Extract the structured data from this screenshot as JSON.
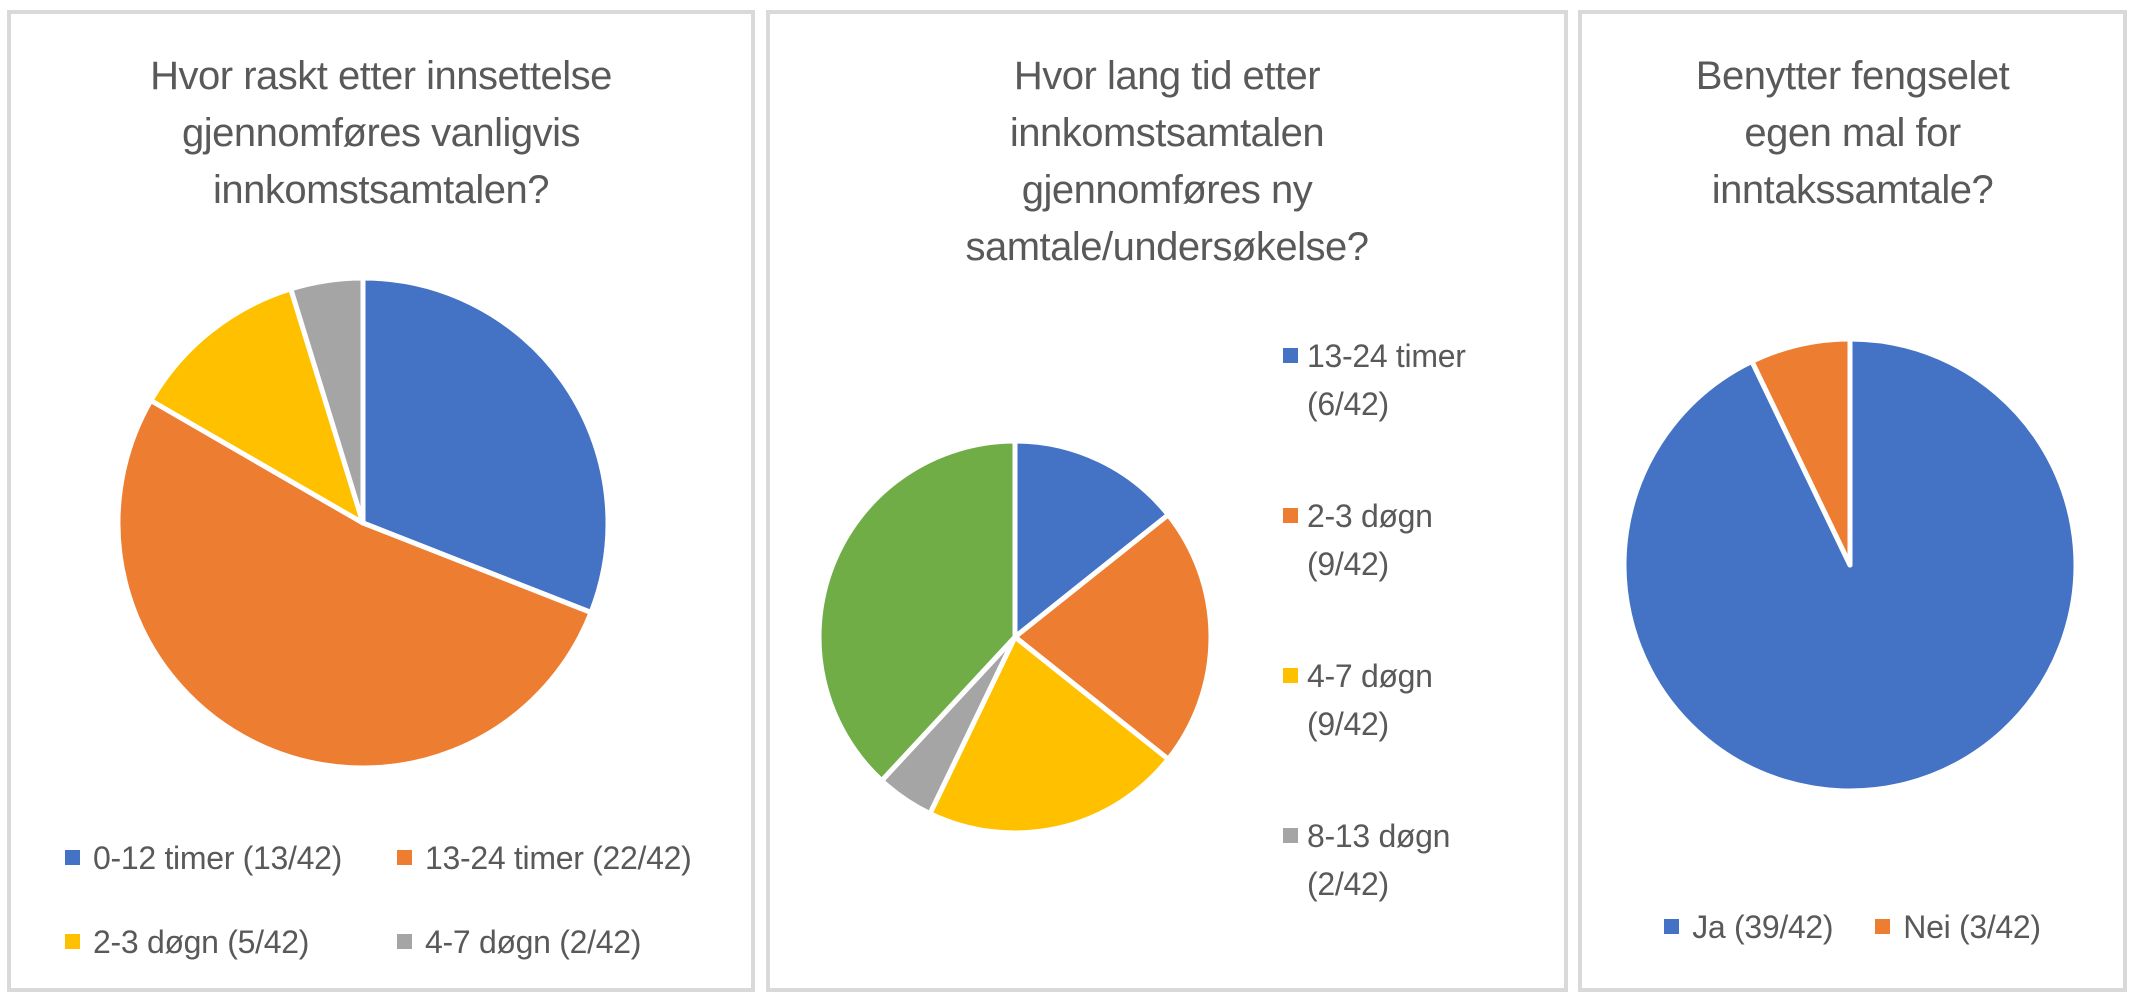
{
  "figure": {
    "background_color": "#FFFFFF",
    "panel_border_color": "#D9D9D9",
    "text_color": "#595959",
    "slice_separator_color": "#FFFFFF"
  },
  "chart_data": [
    {
      "type": "pie",
      "title": "Hvor raskt etter innsettelse gjennomføres vanligvis innkomstsamtalen?",
      "title_wrapped": "Hvor raskt etter innsettelse\ngjennomføres vanligvis\ninnkomstsamtalen?",
      "total": 42,
      "legend_position": "bottom",
      "start_angle_deg": 0,
      "direction": "clockwise",
      "slices": [
        {
          "label": "0-12 timer",
          "value": 13,
          "color": "#4472C4",
          "legend": "0-12 timer (13/42)"
        },
        {
          "label": "13-24 timer",
          "value": 22,
          "color": "#ED7D31",
          "legend": "13-24 timer (22/42)"
        },
        {
          "label": "2-3 døgn",
          "value": 5,
          "color": "#FFC000",
          "legend": "2-3 døgn (5/42)"
        },
        {
          "label": "4-7 døgn",
          "value": 2,
          "color": "#A5A5A5",
          "legend": "4-7 døgn (2/42)"
        }
      ]
    },
    {
      "type": "pie",
      "title": "Hvor lang tid etter innkomstsamtalen gjennomføres ny samtale/undersøkelse?",
      "title_wrapped": "Hvor lang tid etter\ninnkomstsamtalen\ngjennomføres ny\nsamtale/undersøkelse?",
      "total": 42,
      "legend_position": "right",
      "start_angle_deg": 0,
      "direction": "clockwise",
      "slices": [
        {
          "label": "13-24 timer",
          "value": 6,
          "color": "#4472C4",
          "legend": "13-24 timer (6/42)",
          "legend_wrapped": "13-24 timer\n(6/42)"
        },
        {
          "label": "2-3 døgn",
          "value": 9,
          "color": "#ED7D31",
          "legend": "2-3 døgn (9/42)",
          "legend_wrapped": "2-3 døgn\n(9/42)"
        },
        {
          "label": "4-7 døgn",
          "value": 9,
          "color": "#FFC000",
          "legend": "4-7 døgn (9/42)",
          "legend_wrapped": "4-7 døgn\n(9/42)"
        },
        {
          "label": "8-13 døgn",
          "value": 2,
          "color": "#A5A5A5",
          "legend": "8-13 døgn (2/42)",
          "legend_wrapped": "8-13 døgn\n(2/42)"
        },
        {
          "value": 16,
          "color": "#70AD47",
          "legend": null
        }
      ]
    },
    {
      "type": "pie",
      "title": "Benytter fengselet egen mal for inntakssamtale?",
      "title_wrapped": "Benytter fengselet\negen mal for\ninntakssamtale?",
      "total": 42,
      "legend_position": "bottom",
      "start_angle_deg": 0,
      "direction": "clockwise",
      "slices": [
        {
          "label": "Ja",
          "value": 39,
          "color": "#4472C4",
          "legend": "Ja (39/42)"
        },
        {
          "label": "Nei",
          "value": 3,
          "color": "#ED7D31",
          "legend": "Nei (3/42)"
        }
      ]
    }
  ]
}
